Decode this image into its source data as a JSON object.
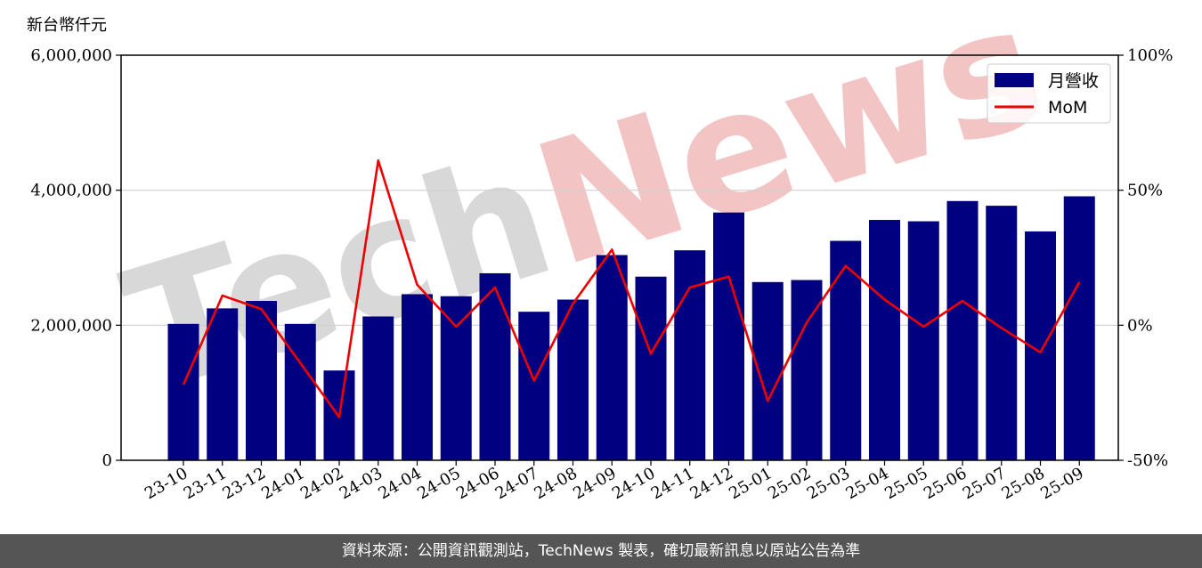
{
  "chart_data": {
    "type": "bar",
    "categories": [
      "23-10",
      "23-11",
      "23-12",
      "24-01",
      "24-02",
      "24-03",
      "24-04",
      "24-05",
      "24-06",
      "24-07",
      "24-08",
      "24-09",
      "24-10",
      "24-11",
      "24-12",
      "25-01",
      "25-02",
      "25-03",
      "25-04",
      "25-05",
      "25-06",
      "25-07",
      "25-08",
      "25-09"
    ],
    "series": [
      {
        "name": "月營收",
        "type": "bar",
        "axis": "left",
        "values": [
          2020000,
          2250000,
          2360000,
          2020000,
          1330000,
          2130000,
          2460000,
          2430000,
          2770000,
          2200000,
          2380000,
          3040000,
          2720000,
          3110000,
          3670000,
          2640000,
          2670000,
          3250000,
          3560000,
          3540000,
          3840000,
          3770000,
          3390000,
          3910000
        ]
      },
      {
        "name": "MoM",
        "type": "line",
        "axis": "right",
        "values": [
          -22,
          11,
          6,
          -14,
          -34,
          61,
          15,
          -0.5,
          14,
          -20.5,
          8,
          28,
          -10.5,
          14,
          18,
          -28,
          1,
          22,
          9.5,
          -0.5,
          9,
          -1,
          -10,
          16
        ]
      }
    ],
    "ylabel": "新台幣仟元",
    "ylim": [
      0,
      6000000
    ],
    "y2lim": [
      -50,
      100
    ],
    "yticks": [
      {
        "value": 0,
        "label": "0"
      },
      {
        "value": 2000000,
        "label": "2,000,000"
      },
      {
        "value": 4000000,
        "label": "4,000,000"
      },
      {
        "value": 6000000,
        "label": "6,000,000"
      }
    ],
    "y2ticks": [
      {
        "value": -50,
        "label": "-50%"
      },
      {
        "value": 0,
        "label": "0%"
      },
      {
        "value": 50,
        "label": "50%"
      },
      {
        "value": 100,
        "label": "100%"
      }
    ],
    "grid": true,
    "legend": "top-right",
    "colors": {
      "bar": "#000080",
      "line": "#ee0000",
      "grid": "#d0d0d0"
    }
  },
  "watermark": {
    "part1": "Tech",
    "part2": "News",
    "color1": "#d8d8d8",
    "color2": "#f3c4c4"
  },
  "footer": {
    "text": "資料來源：公開資訊觀測站，TechNews 製表，確切最新訊息以原站公告為準"
  }
}
